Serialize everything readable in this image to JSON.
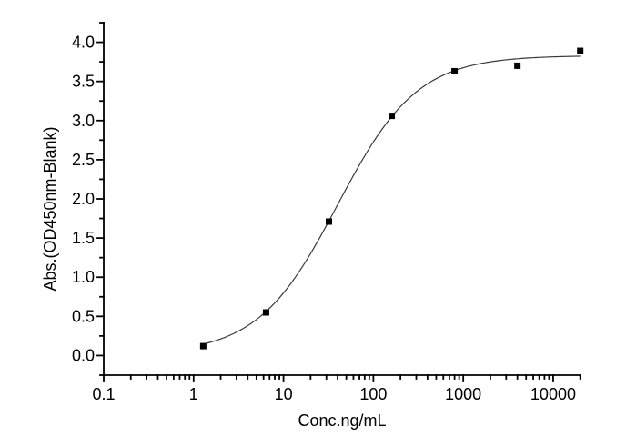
{
  "chart_data": {
    "type": "scatter",
    "title": "",
    "xlabel": "Conc.ng/mL",
    "ylabel": "Abs.(OD450nm-Blank)",
    "x_scale": "log",
    "y_scale": "linear",
    "xlim": [
      0.1,
      20000
    ],
    "ylim": [
      -0.25,
      4.25
    ],
    "x_ticks": [
      0.1,
      1,
      10,
      100,
      1000,
      10000
    ],
    "x_tick_labels": [
      "0.1",
      "1",
      "10",
      "100",
      "1000",
      "10000"
    ],
    "y_ticks": [
      0.0,
      0.5,
      1.0,
      1.5,
      2.0,
      2.5,
      3.0,
      3.5,
      4.0
    ],
    "y_tick_labels": [
      "0.0",
      "0.5",
      "1.0",
      "1.5",
      "2.0",
      "2.5",
      "3.0",
      "3.5",
      "4.0"
    ],
    "y_minor_step": 0.25,
    "grid": false,
    "legend": "none",
    "marker": "filled-square",
    "points": [
      {
        "x": 1.28,
        "y": 0.12
      },
      {
        "x": 6.4,
        "y": 0.55
      },
      {
        "x": 32,
        "y": 1.71
      },
      {
        "x": 160,
        "y": 3.06
      },
      {
        "x": 800,
        "y": 3.63
      },
      {
        "x": 4000,
        "y": 3.7
      },
      {
        "x": 20000,
        "y": 3.89
      }
    ],
    "fit_curve": {
      "model": "4PL",
      "bottom": 0.02,
      "top": 3.83,
      "ec50": 40,
      "hill": 0.98,
      "x_start": 1.28,
      "x_end": 20000
    },
    "colors": {
      "background": "#ffffff",
      "axis": "#000000",
      "tick_text": "#000000",
      "marker": "#000000",
      "curve": "#3a3a3a"
    }
  }
}
